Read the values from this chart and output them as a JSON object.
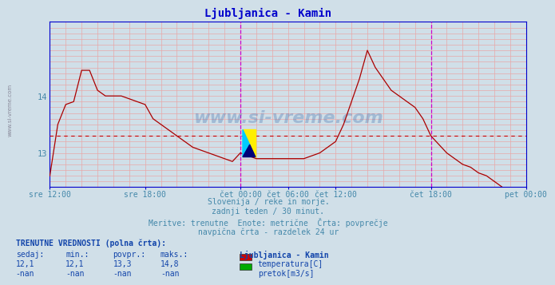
{
  "title": "Ljubljanica - Kamin",
  "bg_color": "#d0dfe8",
  "plot_bg_color": "#d0dfe8",
  "line_color": "#aa0000",
  "avg_line_color": "#cc0000",
  "grid_color": "#e8a8a8",
  "vline_color": "#cc00cc",
  "axis_color": "#0000cc",
  "text_color": "#4488aa",
  "title_color": "#0000cc",
  "yticks": [
    13,
    14
  ],
  "avg_value": 13.3,
  "subtitle_lines": [
    "Slovenija / reke in morje.",
    "zadnji teden / 30 minut.",
    "Meritve: trenutne  Enote: metrične  Črta: povprečje",
    "navpična črta - razdelek 24 ur"
  ],
  "info_label": "TRENUTNE VREDNOSTI (polna črta):",
  "col_headers": [
    "sedaj:",
    "min.:",
    "povpr.:",
    "maks.:"
  ],
  "row1_vals": [
    "12,1",
    "12,1",
    "13,3",
    "14,8"
  ],
  "row2_vals": [
    "-nan",
    "-nan",
    "-nan",
    "-nan"
  ],
  "legend_station": "Ljubljanica - Kamin",
  "legend_items": [
    "temperatura[C]",
    "pretok[m3/s]"
  ],
  "legend_colors": [
    "#cc0000",
    "#00aa00"
  ],
  "watermark": "www.si-vreme.com",
  "x_tick_labels": [
    "sre 12:00",
    "sre 18:00",
    "čet 00:00",
    "čet 06:00",
    "čet 12:00",
    "čet 18:00",
    "pet 00:00"
  ],
  "x_tick_positions": [
    0,
    12,
    24,
    30,
    36,
    48,
    60
  ],
  "vline_positions": [
    24,
    48
  ],
  "ylim_min": 12.4,
  "ylim_max": 15.3,
  "temperature_data": [
    12.6,
    13.5,
    13.85,
    13.9,
    14.45,
    14.45,
    14.1,
    14.0,
    14.0,
    14.0,
    13.95,
    13.9,
    13.85,
    13.6,
    13.5,
    13.4,
    13.3,
    13.2,
    13.1,
    13.05,
    13.0,
    12.95,
    12.9,
    12.85,
    13.0,
    12.95,
    12.9,
    12.9,
    12.9,
    12.9,
    12.9,
    12.9,
    12.9,
    12.95,
    13.0,
    13.1,
    13.2,
    13.5,
    13.9,
    14.3,
    14.8,
    14.5,
    14.3,
    14.1,
    14.0,
    13.9,
    13.8,
    13.6,
    13.3,
    13.15,
    13.0,
    12.9,
    12.8,
    12.75,
    12.65,
    12.6,
    12.5,
    12.4,
    12.3,
    12.2,
    12.1
  ]
}
